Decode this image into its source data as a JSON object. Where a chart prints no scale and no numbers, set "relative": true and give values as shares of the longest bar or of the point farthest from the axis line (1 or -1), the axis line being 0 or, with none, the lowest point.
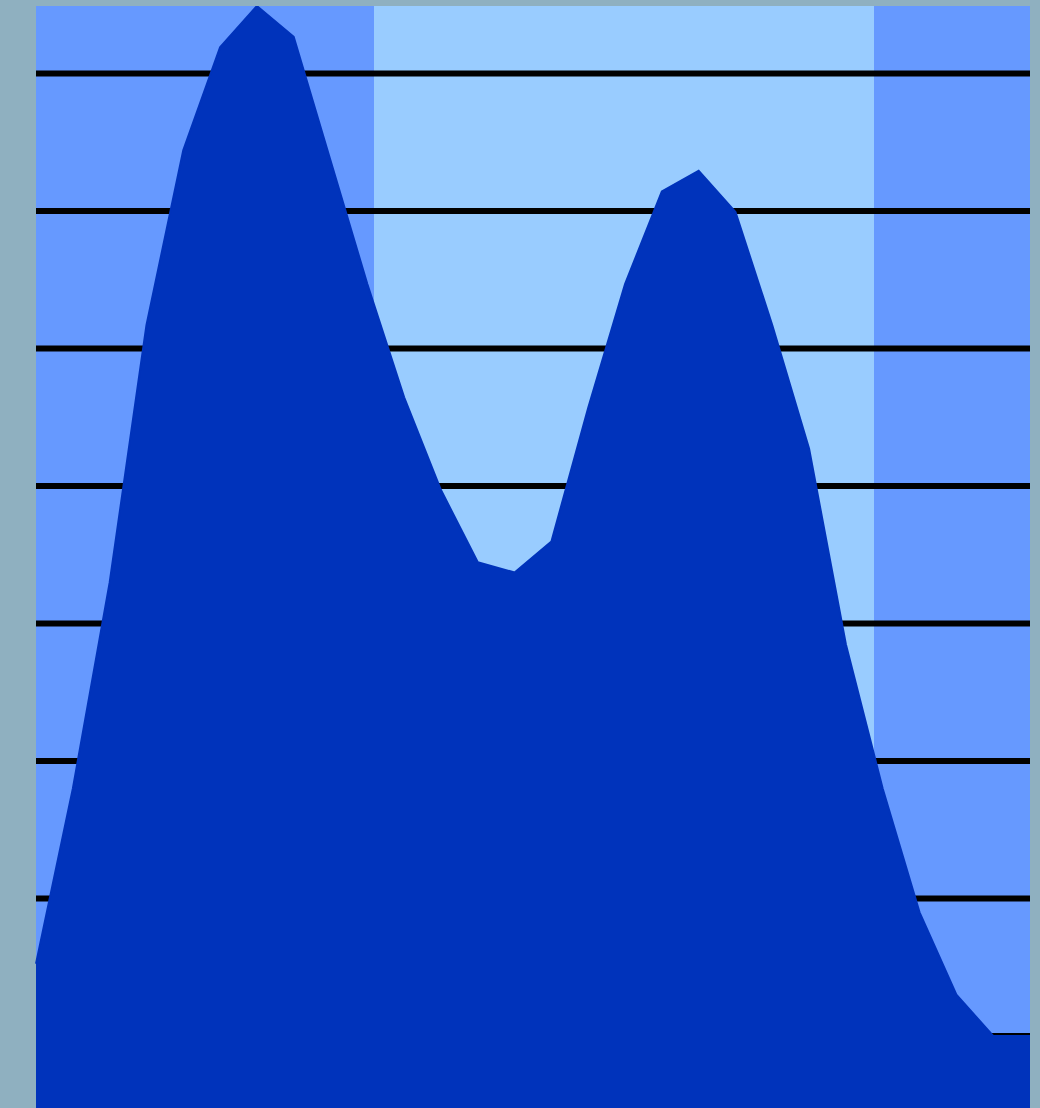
{
  "chart_data": {
    "type": "area",
    "relative": true,
    "categories": [
      null,
      null,
      null,
      null,
      null,
      null,
      null,
      null,
      null,
      null,
      null,
      null,
      null,
      null,
      null,
      null,
      null,
      null,
      null,
      null,
      null,
      null,
      null,
      null,
      null,
      null,
      null,
      null
    ],
    "series": [
      {
        "color": "#0033bb",
        "values": [
          0.07,
          0.24,
          0.44,
          0.69,
          0.86,
          0.96,
          1,
          0.97,
          0.85,
          0.73,
          0.62,
          0.53,
          0.46,
          0.45,
          0.48,
          0.61,
          0.73,
          0.82,
          0.84,
          0.8,
          0.69,
          0.57,
          0.38,
          0.24,
          0.12,
          0.04,
          0,
          0
        ]
      }
    ],
    "grid": "y",
    "tick_labels": false
  }
}
